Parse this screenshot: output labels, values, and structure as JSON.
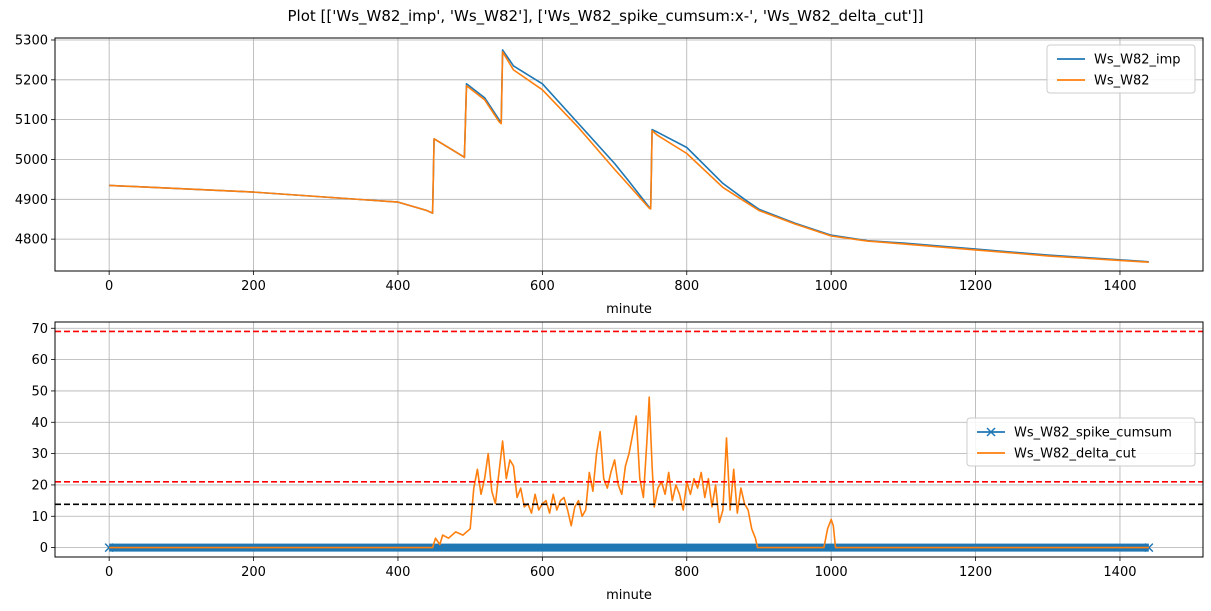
{
  "figure": {
    "title": "Plot [['Ws_W82_imp', 'Ws_W82'], ['Ws_W82_spike_cumsum:x-', 'Ws_W82_delta_cut']]"
  },
  "chart_data": [
    {
      "type": "line",
      "xlabel": "minute",
      "ylabel": "",
      "xlim": [
        -75,
        1515
      ],
      "ylim": [
        4720,
        5305
      ],
      "xticks": [
        0,
        200,
        400,
        600,
        800,
        1000,
        1200,
        1400
      ],
      "yticks": [
        4800,
        4900,
        5000,
        5100,
        5200,
        5300
      ],
      "grid": true,
      "legend": "top-right",
      "series": [
        {
          "name": "Ws_W82_imp",
          "color": "#1f77b4",
          "x": [
            0,
            200,
            400,
            440,
            448,
            450,
            490,
            492,
            495,
            520,
            540,
            543,
            545,
            560,
            600,
            650,
            700,
            720,
            748,
            750,
            752,
            760,
            800,
            850,
            880,
            900,
            950,
            1000,
            1050,
            1100,
            1200,
            1300,
            1440
          ],
          "y": [
            4935,
            4918,
            4893,
            4872,
            4865,
            5052,
            5008,
            5005,
            5190,
            5155,
            5100,
            5092,
            5275,
            5235,
            5190,
            5090,
            4990,
            4945,
            4880,
            4878,
            5075,
            5068,
            5030,
            4940,
            4900,
            4875,
            4840,
            4810,
            4796,
            4790,
            4775,
            4760,
            4743
          ]
        },
        {
          "name": "Ws_W82",
          "color": "#ff7f0e",
          "x": [
            0,
            200,
            400,
            440,
            448,
            450,
            490,
            492,
            495,
            520,
            540,
            543,
            545,
            560,
            600,
            650,
            700,
            720,
            748,
            750,
            752,
            760,
            800,
            850,
            880,
            900,
            950,
            1000,
            1050,
            1100,
            1200,
            1300,
            1440
          ],
          "y": [
            4935,
            4918,
            4893,
            4872,
            4865,
            5052,
            5008,
            5005,
            5185,
            5150,
            5095,
            5090,
            5270,
            5225,
            5175,
            5080,
            4975,
            4935,
            4878,
            4876,
            5072,
            5060,
            5015,
            4930,
            4895,
            4872,
            4838,
            4808,
            4795,
            4788,
            4773,
            4758,
            4742
          ]
        }
      ],
      "hlines": []
    },
    {
      "type": "line",
      "xlabel": "minute",
      "ylabel": "",
      "xlim": [
        -75,
        1515
      ],
      "ylim": [
        -3,
        72
      ],
      "xticks": [
        0,
        200,
        400,
        600,
        800,
        1000,
        1200,
        1400
      ],
      "yticks": [
        0,
        10,
        20,
        30,
        40,
        50,
        60,
        70
      ],
      "grid": true,
      "legend": "center-right",
      "series": [
        {
          "name": "Ws_W82_spike_cumsum",
          "color": "#1f77b4",
          "marker": "x",
          "x": [
            0,
            1440
          ],
          "y": [
            0,
            0
          ]
        },
        {
          "name": "Ws_W82_delta_cut",
          "color": "#ff7f0e",
          "x": [
            0,
            448,
            452,
            458,
            462,
            470,
            480,
            490,
            500,
            505,
            510,
            515,
            520,
            525,
            530,
            535,
            540,
            545,
            550,
            555,
            560,
            565,
            570,
            575,
            580,
            585,
            590,
            595,
            600,
            605,
            610,
            615,
            620,
            625,
            630,
            635,
            640,
            645,
            650,
            655,
            660,
            665,
            670,
            675,
            680,
            685,
            690,
            695,
            700,
            705,
            710,
            715,
            720,
            725,
            730,
            735,
            740,
            745,
            748,
            752,
            755,
            760,
            765,
            770,
            775,
            780,
            785,
            790,
            795,
            800,
            805,
            810,
            815,
            820,
            825,
            830,
            835,
            840,
            845,
            850,
            855,
            860,
            865,
            870,
            875,
            880,
            885,
            890,
            895,
            898,
            990,
            995,
            1000,
            1003,
            1006,
            1440
          ],
          "y": [
            0,
            0,
            3,
            1,
            4,
            3,
            5,
            4,
            6,
            19,
            25,
            17,
            22,
            30,
            18,
            14,
            24,
            34,
            22,
            28,
            26,
            16,
            19,
            13,
            14,
            11,
            17,
            12,
            14,
            15,
            11,
            17,
            12,
            15,
            16,
            12,
            7,
            13,
            15,
            10,
            12,
            24,
            18,
            30,
            37,
            22,
            19,
            24,
            28,
            20,
            17,
            26,
            30,
            36,
            42,
            22,
            16,
            35,
            48,
            26,
            13,
            19,
            21,
            17,
            24,
            15,
            20,
            17,
            12,
            21,
            17,
            22,
            19,
            24,
            16,
            22,
            13,
            20,
            8,
            12,
            35,
            12,
            25,
            11,
            19,
            14,
            12,
            6,
            3,
            0,
            0,
            6,
            9,
            7,
            0,
            0
          ]
        }
      ],
      "hlines": [
        {
          "y": 69,
          "color": "#ff0000",
          "style": "dashed"
        },
        {
          "y": 21,
          "color": "#ff0000",
          "style": "dashed"
        },
        {
          "y": 13.8,
          "color": "#000000",
          "style": "dashed"
        }
      ]
    }
  ]
}
